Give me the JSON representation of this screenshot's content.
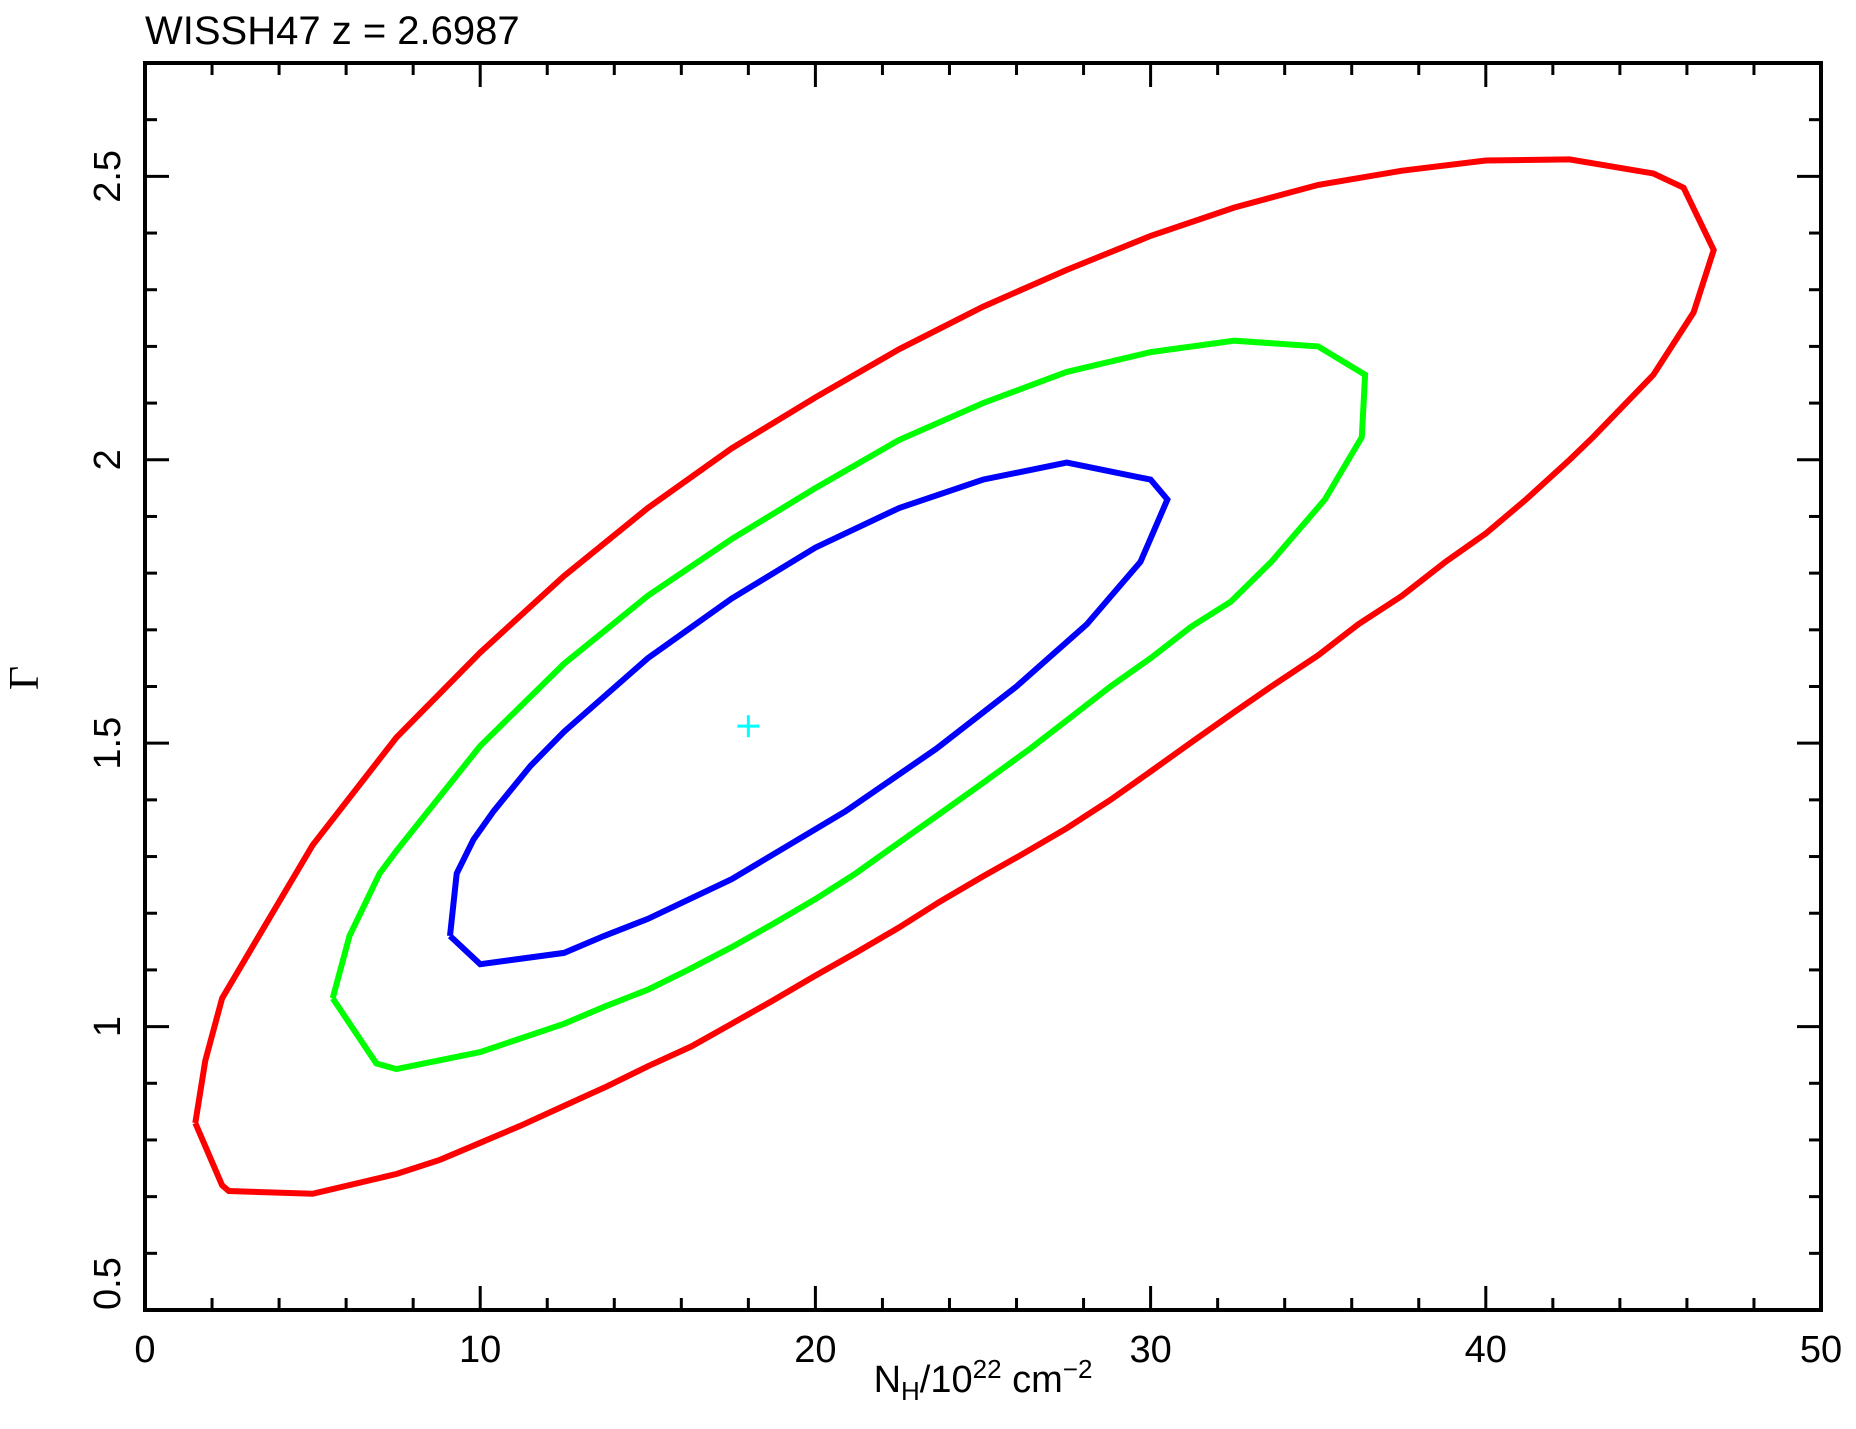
{
  "chart_data": {
    "type": "line",
    "title": "WISSH47 z = 2.6987",
    "xlabel": {
      "base": "N",
      "sub": "H",
      "mid": "/10",
      "sup": "22",
      "tail": " cm",
      "tail_sup": "−2"
    },
    "ylabel": "Γ",
    "xlim": [
      0,
      50
    ],
    "ylim": [
      0.5,
      2.7
    ],
    "xticks": [
      0,
      10,
      20,
      30,
      40,
      50
    ],
    "xtick_labels": [
      "0",
      "10",
      "20",
      "30",
      "40",
      "50"
    ],
    "yticks": [
      0.5,
      1,
      1.5,
      2,
      2.5
    ],
    "ytick_labels": [
      "0.5",
      "1",
      "1.5",
      "2",
      "2.5"
    ],
    "best_fit": {
      "x": 18.0,
      "y": 1.53,
      "color": "#00ffff"
    },
    "series": [
      {
        "color": "#ff0000",
        "points": [
          [
            1.5,
            0.83
          ],
          [
            1.8,
            0.94
          ],
          [
            2.3,
            1.05
          ],
          [
            2.6,
            1.08
          ],
          [
            3.5,
            1.17
          ],
          [
            5,
            1.32
          ],
          [
            7.5,
            1.51
          ],
          [
            10,
            1.66
          ],
          [
            12.5,
            1.795
          ],
          [
            15,
            1.915
          ],
          [
            17.5,
            2.02
          ],
          [
            20,
            2.11
          ],
          [
            22.5,
            2.195
          ],
          [
            25,
            2.27
          ],
          [
            27.5,
            2.335
          ],
          [
            30,
            2.395
          ],
          [
            32.5,
            2.445
          ],
          [
            35,
            2.485
          ],
          [
            37.5,
            2.51
          ],
          [
            40,
            2.528
          ],
          [
            42.5,
            2.53
          ],
          [
            45,
            2.505
          ],
          [
            45.9,
            2.48
          ],
          [
            46.8,
            2.37
          ],
          [
            46.2,
            2.26
          ],
          [
            45,
            2.15
          ],
          [
            43.2,
            2.04
          ],
          [
            42.5,
            2.0
          ],
          [
            41.2,
            1.93
          ],
          [
            40,
            1.87
          ],
          [
            38.8,
            1.82
          ],
          [
            37.5,
            1.76
          ],
          [
            36.2,
            1.71
          ],
          [
            35,
            1.655
          ],
          [
            33.6,
            1.6
          ],
          [
            32.5,
            1.555
          ],
          [
            31.3,
            1.505
          ],
          [
            30,
            1.45
          ],
          [
            28.8,
            1.4
          ],
          [
            27.5,
            1.35
          ],
          [
            26.2,
            1.305
          ],
          [
            25,
            1.265
          ],
          [
            23.7,
            1.22
          ],
          [
            22.5,
            1.175
          ],
          [
            21.2,
            1.13
          ],
          [
            20,
            1.09
          ],
          [
            18.7,
            1.045
          ],
          [
            17.5,
            1.005
          ],
          [
            16.3,
            0.965
          ],
          [
            15,
            0.93
          ],
          [
            13.8,
            0.895
          ],
          [
            12.5,
            0.86
          ],
          [
            11.2,
            0.825
          ],
          [
            10,
            0.795
          ],
          [
            8.8,
            0.765
          ],
          [
            7.5,
            0.74
          ],
          [
            5,
            0.705
          ],
          [
            2.5,
            0.71
          ],
          [
            2.3,
            0.72
          ],
          [
            1.5,
            0.83
          ]
        ]
      },
      {
        "color": "#00ff00",
        "points": [
          [
            5.6,
            1.05
          ],
          [
            6.1,
            1.16
          ],
          [
            7,
            1.27
          ],
          [
            7.5,
            1.31
          ],
          [
            10,
            1.495
          ],
          [
            12.5,
            1.64
          ],
          [
            15,
            1.76
          ],
          [
            17.5,
            1.86
          ],
          [
            20,
            1.95
          ],
          [
            22.5,
            2.035
          ],
          [
            25,
            2.1
          ],
          [
            27.5,
            2.155
          ],
          [
            30,
            2.19
          ],
          [
            32.5,
            2.21
          ],
          [
            35,
            2.2
          ],
          [
            36.4,
            2.15
          ],
          [
            36.3,
            2.04
          ],
          [
            35.2,
            1.93
          ],
          [
            33.6,
            1.82
          ],
          [
            32.4,
            1.75
          ],
          [
            31.2,
            1.705
          ],
          [
            30,
            1.65
          ],
          [
            28.8,
            1.6
          ],
          [
            27.6,
            1.545
          ],
          [
            26.4,
            1.49
          ],
          [
            25,
            1.43
          ],
          [
            23.7,
            1.375
          ],
          [
            22.5,
            1.325
          ],
          [
            21.2,
            1.27
          ],
          [
            20,
            1.225
          ],
          [
            18.7,
            1.18
          ],
          [
            17.5,
            1.14
          ],
          [
            16.2,
            1.1
          ],
          [
            15,
            1.065
          ],
          [
            13.7,
            1.035
          ],
          [
            12.5,
            1.005
          ],
          [
            10,
            0.955
          ],
          [
            7.5,
            0.925
          ],
          [
            6.9,
            0.935
          ],
          [
            5.6,
            1.05
          ]
        ]
      },
      {
        "color": "#0000ff",
        "points": [
          [
            9.1,
            1.16
          ],
          [
            9.3,
            1.27
          ],
          [
            9.8,
            1.33
          ],
          [
            10.4,
            1.38
          ],
          [
            11.5,
            1.46
          ],
          [
            12.5,
            1.52
          ],
          [
            15,
            1.65
          ],
          [
            17.5,
            1.755
          ],
          [
            20,
            1.845
          ],
          [
            22.5,
            1.915
          ],
          [
            25,
            1.965
          ],
          [
            27.5,
            1.995
          ],
          [
            30,
            1.965
          ],
          [
            30.5,
            1.93
          ],
          [
            29.7,
            1.82
          ],
          [
            28.1,
            1.71
          ],
          [
            26,
            1.6
          ],
          [
            23.6,
            1.49
          ],
          [
            20.9,
            1.38
          ],
          [
            17.5,
            1.26
          ],
          [
            15,
            1.19
          ],
          [
            13.7,
            1.16
          ],
          [
            12.5,
            1.13
          ],
          [
            10,
            1.11
          ],
          [
            9.1,
            1.16
          ]
        ]
      }
    ]
  }
}
